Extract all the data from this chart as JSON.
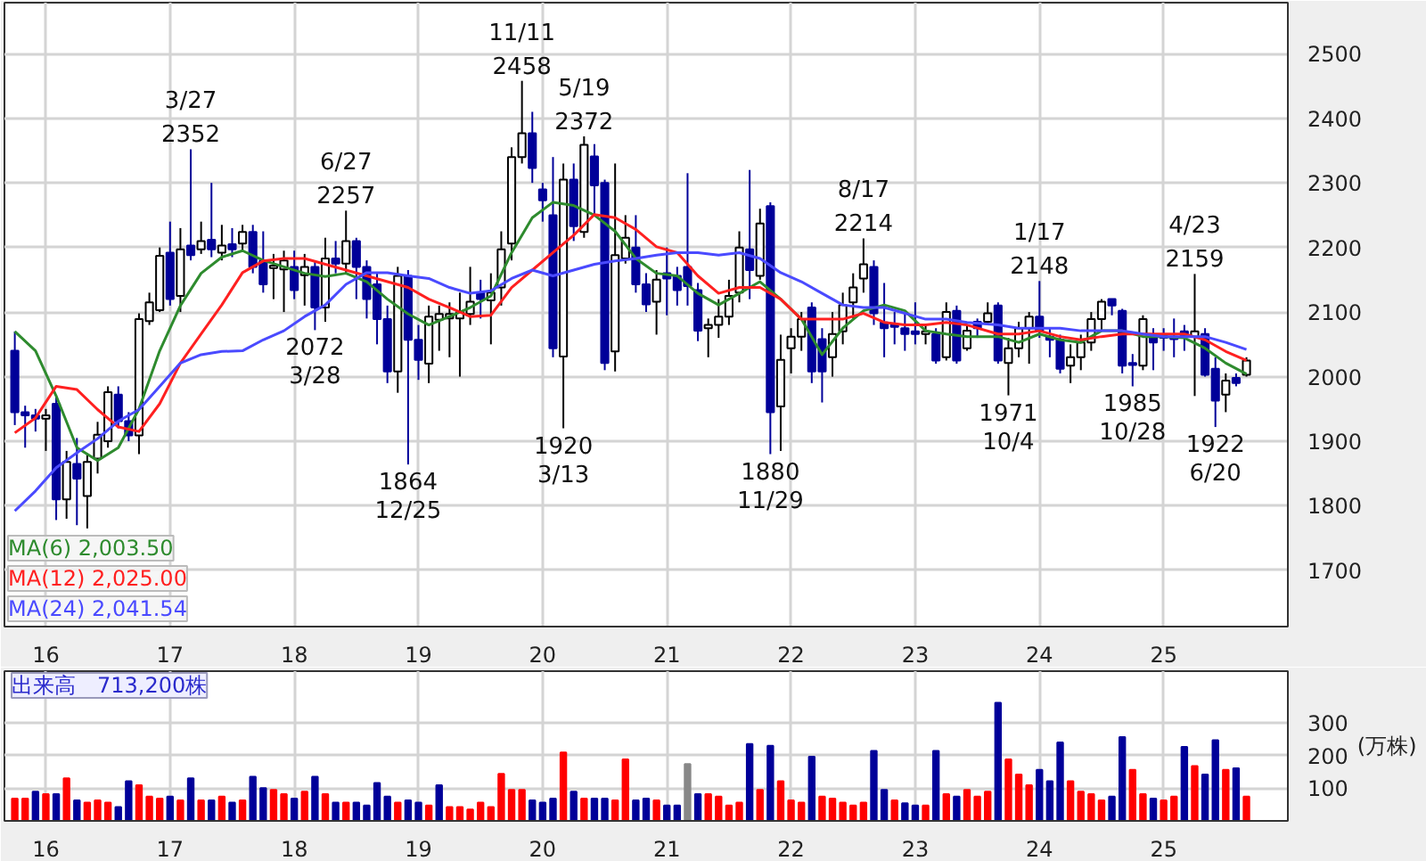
{
  "chart_data": [
    {
      "type": "candlestick",
      "x": [
        "2015-10",
        "2015-11",
        "2015-12",
        "2016-01",
        "2016-02",
        "2016-03",
        "2016-04",
        "2016-05",
        "2016-06",
        "2016-07",
        "2016-08",
        "2016-09",
        "2016-10",
        "2016-11",
        "2016-12",
        "2017-01",
        "2017-02",
        "2017-03",
        "2017-04",
        "2017-05",
        "2017-06",
        "2017-07",
        "2017-08",
        "2017-09",
        "2017-10",
        "2017-11",
        "2017-12",
        "2018-01",
        "2018-02",
        "2018-03",
        "2018-04",
        "2018-05",
        "2018-06",
        "2018-07",
        "2018-08",
        "2018-09",
        "2018-10",
        "2018-11",
        "2018-12",
        "2019-01",
        "2019-02",
        "2019-03",
        "2019-04",
        "2019-05",
        "2019-06",
        "2019-07",
        "2019-08",
        "2019-09",
        "2019-10",
        "2019-11",
        "2019-12",
        "2020-01",
        "2020-02",
        "2020-03",
        "2020-04",
        "2020-05",
        "2020-06",
        "2020-07",
        "2020-08",
        "2020-09",
        "2020-10",
        "2020-11",
        "2020-12",
        "2021-01",
        "2021-02",
        "2021-03",
        "2021-04",
        "2021-05",
        "2021-06",
        "2021-07",
        "2021-08",
        "2021-09",
        "2021-10",
        "2021-11",
        "2021-12",
        "2022-01",
        "2022-02",
        "2022-03",
        "2022-04",
        "2022-05",
        "2022-06",
        "2022-07",
        "2022-08",
        "2022-09",
        "2022-10",
        "2022-11",
        "2022-12",
        "2023-01",
        "2023-02",
        "2023-03",
        "2023-04",
        "2023-05",
        "2023-06",
        "2023-07",
        "2023-08",
        "2023-09",
        "2023-10",
        "2023-11",
        "2023-12",
        "2024-01",
        "2024-02",
        "2024-03",
        "2024-04",
        "2024-05",
        "2024-06",
        "2024-07",
        "2024-08",
        "2024-09",
        "2024-10",
        "2024-11",
        "2024-12",
        "2025-01",
        "2025-02",
        "2025-03",
        "2025-04",
        "2025-05",
        "2025-06",
        "2025-07",
        "2025-08",
        "2025-09"
      ],
      "ohlc": [
        [
          2040,
          2070,
          1925,
          1945
        ],
        [
          1945,
          1955,
          1890,
          1940
        ],
        [
          1940,
          1950,
          1915,
          1935
        ],
        [
          1935,
          1950,
          1885,
          1940
        ],
        [
          1958,
          1970,
          1778,
          1810
        ],
        [
          1810,
          1885,
          1780,
          1868
        ],
        [
          1865,
          1905,
          1770,
          1842
        ],
        [
          1815,
          1880,
          1765,
          1868
        ],
        [
          1873,
          1930,
          1850,
          1910
        ],
        [
          1900,
          1985,
          1890,
          1976
        ],
        [
          1972,
          1985,
          1920,
          1931
        ],
        [
          1931,
          1945,
          1900,
          1909
        ],
        [
          1909,
          2098,
          1880,
          2089
        ],
        [
          2086,
          2130,
          2080,
          2115
        ],
        [
          2103,
          2200,
          2100,
          2187
        ],
        [
          2192,
          2240,
          2110,
          2120
        ],
        [
          2125,
          2230,
          2100,
          2197
        ],
        [
          2203,
          2352,
          2180,
          2188
        ],
        [
          2197,
          2240,
          2190,
          2210
        ],
        [
          2212,
          2300,
          2185,
          2197
        ],
        [
          2192,
          2235,
          2180,
          2203
        ],
        [
          2205,
          2230,
          2185,
          2197
        ],
        [
          2206,
          2235,
          2195,
          2224
        ],
        [
          2224,
          2235,
          2160,
          2170
        ],
        [
          2179,
          2225,
          2130,
          2143
        ],
        [
          2168,
          2190,
          2120,
          2172
        ],
        [
          2166,
          2195,
          2100,
          2180
        ],
        [
          2170,
          2195,
          2120,
          2134
        ],
        [
          2157,
          2190,
          2110,
          2170
        ],
        [
          2170,
          2180,
          2072,
          2107
        ],
        [
          2107,
          2215,
          2085,
          2183
        ],
        [
          2183,
          2210,
          2160,
          2175
        ],
        [
          2175,
          2257,
          2160,
          2210
        ],
        [
          2210,
          2215,
          2120,
          2170
        ],
        [
          2170,
          2180,
          2090,
          2120
        ],
        [
          2143,
          2160,
          2050,
          2089
        ],
        [
          2089,
          2110,
          1990,
          2008
        ],
        [
          2008,
          2170,
          1975,
          2156
        ],
        [
          2156,
          2165,
          1864,
          2057
        ],
        [
          2057,
          2080,
          1995,
          2026
        ],
        [
          2020,
          2110,
          1990,
          2093
        ],
        [
          2088,
          2110,
          2040,
          2097
        ],
        [
          2090,
          2115,
          2030,
          2097
        ],
        [
          2090,
          2130,
          2000,
          2100
        ],
        [
          2097,
          2170,
          2080,
          2116
        ],
        [
          2130,
          2150,
          2090,
          2120
        ],
        [
          2118,
          2160,
          2050,
          2130
        ],
        [
          2138,
          2225,
          2110,
          2197
        ],
        [
          2206,
          2355,
          2180,
          2340
        ],
        [
          2340,
          2458,
          2330,
          2377
        ],
        [
          2377,
          2410,
          2300,
          2323
        ],
        [
          2290,
          2300,
          2240,
          2273
        ],
        [
          2250,
          2340,
          2030,
          2044
        ],
        [
          2031,
          2330,
          1920,
          2305
        ],
        [
          2305,
          2330,
          2210,
          2233
        ],
        [
          2224,
          2372,
          2215,
          2359
        ],
        [
          2341,
          2360,
          2250,
          2296
        ],
        [
          2300,
          2305,
          2010,
          2021
        ],
        [
          2039,
          2330,
          2008,
          2188
        ],
        [
          2183,
          2250,
          2175,
          2215
        ],
        [
          2200,
          2250,
          2130,
          2143
        ],
        [
          2143,
          2160,
          2100,
          2112
        ],
        [
          2116,
          2165,
          2065,
          2150
        ],
        [
          2160,
          2200,
          2095,
          2152
        ],
        [
          2156,
          2170,
          2110,
          2134
        ],
        [
          2170,
          2315,
          2110,
          2140
        ],
        [
          2134,
          2145,
          2055,
          2071
        ],
        [
          2075,
          2090,
          2030,
          2080
        ],
        [
          2080,
          2120,
          2060,
          2093
        ],
        [
          2093,
          2150,
          2080,
          2125
        ],
        [
          2130,
          2225,
          2115,
          2200
        ],
        [
          2197,
          2320,
          2120,
          2165
        ],
        [
          2156,
          2260,
          2150,
          2237
        ],
        [
          2264,
          2270,
          1880,
          1945
        ],
        [
          1954,
          2065,
          1885,
          2026
        ],
        [
          2044,
          2075,
          2005,
          2062
        ],
        [
          2062,
          2100,
          2040,
          2089
        ],
        [
          2107,
          2115,
          1990,
          2008
        ],
        [
          2058,
          2075,
          1960,
          2008
        ],
        [
          2030,
          2100,
          2000,
          2066
        ],
        [
          2070,
          2130,
          2050,
          2111
        ],
        [
          2115,
          2160,
          2090,
          2138
        ],
        [
          2152,
          2214,
          2130,
          2174
        ],
        [
          2170,
          2180,
          2080,
          2098
        ],
        [
          2084,
          2145,
          2030,
          2075
        ],
        [
          2080,
          2100,
          2050,
          2077
        ],
        [
          2075,
          2100,
          2040,
          2066
        ],
        [
          2070,
          2115,
          2050,
          2066
        ],
        [
          2066,
          2080,
          2050,
          2070
        ],
        [
          2066,
          2075,
          2020,
          2025
        ],
        [
          2030,
          2115,
          2025,
          2100
        ],
        [
          2102,
          2110,
          2020,
          2025
        ],
        [
          2044,
          2080,
          2040,
          2071
        ],
        [
          2085,
          2090,
          2060,
          2075
        ],
        [
          2085,
          2115,
          2080,
          2098
        ],
        [
          2110,
          2115,
          2020,
          2025
        ],
        [
          2021,
          2060,
          1971,
          2044
        ],
        [
          2044,
          2085,
          2030,
          2075
        ],
        [
          2075,
          2100,
          2020,
          2093
        ],
        [
          2093,
          2148,
          2060,
          2071
        ],
        [
          2062,
          2075,
          2030,
          2057
        ],
        [
          2057,
          2065,
          2005,
          2012
        ],
        [
          2017,
          2050,
          1990,
          2030
        ],
        [
          2030,
          2065,
          2010,
          2053
        ],
        [
          2053,
          2100,
          2040,
          2089
        ],
        [
          2089,
          2120,
          2070,
          2116
        ],
        [
          2120,
          2120,
          2095,
          2110
        ],
        [
          2102,
          2105,
          2005,
          2017
        ],
        [
          2021,
          2035,
          1985,
          2018
        ],
        [
          2017,
          2095,
          2010,
          2089
        ],
        [
          2062,
          2075,
          2010,
          2053
        ],
        [
          2063,
          2075,
          2040,
          2060
        ],
        [
          2062,
          2090,
          2030,
          2058
        ],
        [
          2070,
          2080,
          2040,
          2062
        ],
        [
          2062,
          2159,
          1970,
          2070
        ],
        [
          2066,
          2075,
          2000,
          2003
        ],
        [
          2012,
          2030,
          1922,
          1963
        ],
        [
          1972,
          2005,
          1945,
          1994
        ],
        [
          1998,
          2005,
          1985,
          1990
        ],
        [
          2003,
          2030,
          2000,
          2025
        ]
      ],
      "series": [
        {
          "name": "MA(6) 2,003.50",
          "type": "line",
          "color": "#2e8b2e",
          "x": [
            "2015-10",
            "2015-12",
            "2016-02",
            "2016-04",
            "2016-06",
            "2016-08",
            "2016-10",
            "2016-12",
            "2017-02",
            "2017-04",
            "2017-06",
            "2017-08",
            "2017-10",
            "2017-12",
            "2018-02",
            "2018-04",
            "2018-06",
            "2018-08",
            "2018-10",
            "2018-12",
            "2019-02",
            "2019-04",
            "2019-06",
            "2019-08",
            "2019-10",
            "2019-12",
            "2020-02",
            "2020-04",
            "2020-06",
            "2020-08",
            "2020-10",
            "2020-12",
            "2021-02",
            "2021-04",
            "2021-06",
            "2021-08",
            "2021-10",
            "2021-12",
            "2022-02",
            "2022-04",
            "2022-06",
            "2022-08",
            "2022-10",
            "2022-12",
            "2023-02",
            "2023-04",
            "2023-06",
            "2023-09",
            "2023-11",
            "2024-01",
            "2024-03",
            "2024-05",
            "2024-07",
            "2024-09",
            "2024-11",
            "2025-01",
            "2025-03",
            "2025-05",
            "2025-07",
            "2025-09"
          ],
          "values": [
            2070,
            2040,
            1970,
            1890,
            1870,
            1890,
            1950,
            2040,
            2110,
            2160,
            2185,
            2195,
            2180,
            2170,
            2160,
            2155,
            2160,
            2147,
            2120,
            2097,
            2080,
            2093,
            2107,
            2125,
            2192,
            2246,
            2270,
            2265,
            2250,
            2225,
            2183,
            2160,
            2156,
            2129,
            2111,
            2129,
            2147,
            2120,
            2089,
            2034,
            2075,
            2102,
            2111,
            2102,
            2071,
            2066,
            2062,
            2062,
            2053,
            2066,
            2057,
            2053,
            2071,
            2071,
            2062,
            2062,
            2060,
            2044,
            2021,
            2004
          ]
        },
        {
          "name": "MA(12) 2,025.00",
          "type": "line",
          "color": "#ff2020",
          "x": [
            "2015-10",
            "2015-12",
            "2016-02",
            "2016-04",
            "2016-06",
            "2016-08",
            "2016-10",
            "2016-12",
            "2017-02",
            "2017-04",
            "2017-06",
            "2017-08",
            "2017-10",
            "2017-12",
            "2018-02",
            "2018-04",
            "2018-06",
            "2018-08",
            "2018-10",
            "2018-12",
            "2019-02",
            "2019-04",
            "2019-06",
            "2019-08",
            "2019-10",
            "2019-12",
            "2020-02",
            "2020-04",
            "2020-06",
            "2020-08",
            "2020-10",
            "2020-12",
            "2021-02",
            "2021-04",
            "2021-06",
            "2021-08",
            "2021-10",
            "2021-12",
            "2022-02",
            "2022-04",
            "2022-06",
            "2022-08",
            "2022-10",
            "2022-12",
            "2023-02",
            "2023-04",
            "2023-06",
            "2023-09",
            "2023-11",
            "2024-01",
            "2024-03",
            "2024-05",
            "2024-07",
            "2024-09",
            "2024-11",
            "2025-01",
            "2025-03",
            "2025-05",
            "2025-07",
            "2025-09"
          ],
          "values": [
            1913,
            1936,
            1985,
            1980,
            1949,
            1922,
            1915,
            1958,
            2021,
            2066,
            2111,
            2161,
            2179,
            2183,
            2183,
            2174,
            2165,
            2156,
            2147,
            2138,
            2120,
            2107,
            2093,
            2095,
            2138,
            2165,
            2192,
            2219,
            2251,
            2246,
            2228,
            2201,
            2192,
            2156,
            2129,
            2138,
            2138,
            2120,
            2089,
            2089,
            2089,
            2098,
            2084,
            2080,
            2080,
            2084,
            2080,
            2066,
            2066,
            2071,
            2062,
            2057,
            2062,
            2066,
            2066,
            2066,
            2066,
            2057,
            2039,
            2025
          ]
        },
        {
          "name": "MA(24) 2,041.54",
          "type": "line",
          "color": "#4a4aff",
          "x": [
            "2015-10",
            "2015-12",
            "2016-02",
            "2016-04",
            "2016-06",
            "2016-08",
            "2016-10",
            "2016-12",
            "2017-02",
            "2017-04",
            "2017-06",
            "2017-08",
            "2017-10",
            "2017-12",
            "2018-02",
            "2018-04",
            "2018-06",
            "2018-08",
            "2018-10",
            "2018-12",
            "2019-02",
            "2019-04",
            "2019-06",
            "2019-08",
            "2019-10",
            "2019-12",
            "2020-02",
            "2020-04",
            "2020-06",
            "2020-08",
            "2020-10",
            "2020-12",
            "2021-02",
            "2021-04",
            "2021-06",
            "2021-08",
            "2021-10",
            "2021-12",
            "2022-02",
            "2022-04",
            "2022-06",
            "2022-08",
            "2022-10",
            "2022-12",
            "2023-02",
            "2023-04",
            "2023-06",
            "2023-09",
            "2023-11",
            "2024-01",
            "2024-03",
            "2024-05",
            "2024-07",
            "2024-09",
            "2024-11",
            "2025-01",
            "2025-03",
            "2025-05",
            "2025-07",
            "2025-09"
          ],
          "values": [
            1792,
            1823,
            1859,
            1882,
            1904,
            1931,
            1949,
            1985,
            2021,
            2034,
            2039,
            2040,
            2057,
            2071,
            2093,
            2111,
            2143,
            2161,
            2161,
            2156,
            2152,
            2138,
            2129,
            2133,
            2152,
            2165,
            2156,
            2165,
            2174,
            2179,
            2183,
            2188,
            2192,
            2192,
            2188,
            2192,
            2183,
            2161,
            2147,
            2129,
            2111,
            2107,
            2107,
            2098,
            2089,
            2089,
            2084,
            2080,
            2075,
            2075,
            2075,
            2071,
            2071,
            2071,
            2066,
            2062,
            2062,
            2062,
            2053,
            2042
          ]
        }
      ],
      "annotations": [
        {
          "text": "3/27\n2352",
          "x": "2017-03",
          "y": 2352
        },
        {
          "text": "6/27\n2257",
          "x": "2018-06",
          "y": 2257
        },
        {
          "text": "2072\n3/28",
          "x": "2018-03",
          "y": 2072
        },
        {
          "text": "1864\n12/25",
          "x": "2018-12",
          "y": 1864
        },
        {
          "text": "11/11\n2458",
          "x": "2019-11",
          "y": 2458
        },
        {
          "text": "5/19\n2372",
          "x": "2020-05",
          "y": 2372
        },
        {
          "text": "1920\n3/13",
          "x": "2020-03",
          "y": 1920
        },
        {
          "text": "1880\n11/29",
          "x": "2021-11",
          "y": 1880
        },
        {
          "text": "8/17\n2214",
          "x": "2022-08",
          "y": 2214
        },
        {
          "text": "1971\n10/4",
          "x": "2023-10",
          "y": 1971
        },
        {
          "text": "1/17\n2148",
          "x": "2024-01",
          "y": 2148
        },
        {
          "text": "1985\n10/28",
          "x": "2024-10",
          "y": 1985
        },
        {
          "text": "4/23\n2159",
          "x": "2025-04",
          "y": 2159
        },
        {
          "text": "1922\n6/20",
          "x": "2025-06",
          "y": 1922
        }
      ],
      "xlim": [
        "2015-09",
        "2026-01"
      ],
      "xticks": [
        {
          "value": "2016-01",
          "label": "16"
        },
        {
          "value": "2017-01",
          "label": "17"
        },
        {
          "value": "2018-01",
          "label": "18"
        },
        {
          "value": "2019-01",
          "label": "19"
        },
        {
          "value": "2020-01",
          "label": "20"
        },
        {
          "value": "2021-01",
          "label": "21"
        },
        {
          "value": "2022-01",
          "label": "22"
        },
        {
          "value": "2023-01",
          "label": "23"
        },
        {
          "value": "2024-01",
          "label": "24"
        },
        {
          "value": "2025-01",
          "label": "25"
        }
      ],
      "ylim": [
        1613,
        2579
      ],
      "yticks": [
        1700,
        1800,
        1900,
        2000,
        2100,
        2200,
        2300,
        2400,
        2500
      ],
      "grid": true,
      "legend": "bottom left"
    },
    {
      "type": "bar",
      "title": "出来高　713,200株",
      "ylabel": "(万株)",
      "x": [
        "2015-10",
        "2015-11",
        "2015-12",
        "2016-01",
        "2016-02",
        "2016-03",
        "2016-04",
        "2016-05",
        "2016-06",
        "2016-07",
        "2016-08",
        "2016-09",
        "2016-10",
        "2016-11",
        "2016-12",
        "2017-01",
        "2017-02",
        "2017-03",
        "2017-04",
        "2017-05",
        "2017-06",
        "2017-07",
        "2017-08",
        "2017-09",
        "2017-10",
        "2017-11",
        "2017-12",
        "2018-01",
        "2018-02",
        "2018-03",
        "2018-04",
        "2018-05",
        "2018-06",
        "2018-07",
        "2018-08",
        "2018-09",
        "2018-10",
        "2018-11",
        "2018-12",
        "2019-01",
        "2019-02",
        "2019-03",
        "2019-04",
        "2019-05",
        "2019-06",
        "2019-07",
        "2019-08",
        "2019-09",
        "2019-10",
        "2019-11",
        "2019-12",
        "2020-01",
        "2020-02",
        "2020-03",
        "2020-04",
        "2020-05",
        "2020-06",
        "2020-07",
        "2020-08",
        "2020-09",
        "2020-10",
        "2020-11",
        "2020-12",
        "2021-01",
        "2021-02",
        "2021-03",
        "2021-04",
        "2021-05",
        "2021-06",
        "2021-07",
        "2021-08",
        "2021-09",
        "2021-10",
        "2021-11",
        "2021-12",
        "2022-01",
        "2022-02",
        "2022-03",
        "2022-04",
        "2022-05",
        "2022-06",
        "2022-07",
        "2022-08",
        "2022-09",
        "2022-10",
        "2022-11",
        "2022-12",
        "2023-01",
        "2023-02",
        "2023-03",
        "2023-04",
        "2023-05",
        "2023-06",
        "2023-07",
        "2023-08",
        "2023-09",
        "2023-10",
        "2023-11",
        "2023-12",
        "2024-01",
        "2024-02",
        "2024-03",
        "2024-04",
        "2024-05",
        "2024-06",
        "2024-07",
        "2024-08",
        "2024-09",
        "2024-10",
        "2024-11",
        "2024-12",
        "2025-01",
        "2025-02",
        "2025-03",
        "2025-04",
        "2025-05",
        "2025-06",
        "2025-07",
        "2025-08",
        "2025-09"
      ],
      "values": [
        68,
        68,
        89,
        82,
        82,
        130,
        63,
        56,
        63,
        56,
        42,
        121,
        109,
        74,
        68,
        74,
        63,
        130,
        63,
        63,
        74,
        56,
        63,
        135,
        100,
        95,
        82,
        68,
        89,
        135,
        82,
        56,
        56,
        56,
        47,
        116,
        74,
        56,
        63,
        56,
        47,
        109,
        42,
        42,
        35,
        56,
        42,
        144,
        95,
        95,
        63,
        56,
        68,
        209,
        89,
        68,
        68,
        68,
        63,
        188,
        63,
        68,
        63,
        47,
        47,
        174,
        82,
        82,
        74,
        47,
        56,
        235,
        95,
        230,
        121,
        63,
        56,
        196,
        74,
        68,
        56,
        47,
        56,
        214,
        95,
        63,
        54,
        47,
        47,
        214,
        82,
        74,
        95,
        74,
        89,
        361,
        188,
        142,
        109,
        156,
        121,
        240,
        121,
        89,
        82,
        63,
        74,
        256,
        156,
        82,
        68,
        63,
        74,
        226,
        168,
        142,
        247,
        156,
        161,
        74
      ],
      "colors": [
        "#ff0000",
        "#ff0000",
        "#000099",
        "#ff0000",
        "#000099",
        "#ff0000",
        "#000099",
        "#ff0000",
        "#ff0000",
        "#ff0000",
        "#000099",
        "#000099",
        "#ff0000",
        "#ff0000",
        "#ff0000",
        "#000099",
        "#ff0000",
        "#000099",
        "#ff0000",
        "#000099",
        "#ff0000",
        "#000099",
        "#ff0000",
        "#000099",
        "#000099",
        "#ff0000",
        "#ff0000",
        "#000099",
        "#ff0000",
        "#000099",
        "#ff0000",
        "#000099",
        "#ff0000",
        "#000099",
        "#000099",
        "#000099",
        "#000099",
        "#ff0000",
        "#000099",
        "#000099",
        "#ff0000",
        "#000099",
        "#ff0000",
        "#ff0000",
        "#ff0000",
        "#ff0000",
        "#ff0000",
        "#ff0000",
        "#ff0000",
        "#ff0000",
        "#000099",
        "#000099",
        "#000099",
        "#ff0000",
        "#000099",
        "#ff0000",
        "#000099",
        "#000099",
        "#ff0000",
        "#ff0000",
        "#000099",
        "#000099",
        "#ff0000",
        "#000099",
        "#000099",
        "#888888",
        "#000099",
        "#ff0000",
        "#ff0000",
        "#ff0000",
        "#ff0000",
        "#000099",
        "#ff0000",
        "#000099",
        "#ff0000",
        "#ff0000",
        "#ff0000",
        "#000099",
        "#ff0000",
        "#ff0000",
        "#ff0000",
        "#ff0000",
        "#ff0000",
        "#000099",
        "#000099",
        "#ff0000",
        "#000099",
        "#000099",
        "#ff0000",
        "#000099",
        "#ff0000",
        "#000099",
        "#ff0000",
        "#ff0000",
        "#ff0000",
        "#000099",
        "#ff0000",
        "#ff0000",
        "#ff0000",
        "#000099",
        "#000099",
        "#000099",
        "#ff0000",
        "#ff0000",
        "#ff0000",
        "#ff0000",
        "#000099",
        "#000099",
        "#ff0000",
        "#ff0000",
        "#000099",
        "#ff0000",
        "#ff0000",
        "#000099",
        "#ff0000",
        "#000099",
        "#000099",
        "#ff0000",
        "#000099",
        "#ff0000"
      ],
      "xlim": [
        "2015-09",
        "2026-01"
      ],
      "xticks": [
        {
          "value": "2016-01",
          "label": "16"
        },
        {
          "value": "2017-01",
          "label": "17"
        },
        {
          "value": "2018-01",
          "label": "18"
        },
        {
          "value": "2019-01",
          "label": "19"
        },
        {
          "value": "2020-01",
          "label": "20"
        },
        {
          "value": "2021-01",
          "label": "21"
        },
        {
          "value": "2022-01",
          "label": "22"
        },
        {
          "value": "2023-01",
          "label": "23"
        },
        {
          "value": "2024-01",
          "label": "24"
        },
        {
          "value": "2025-01",
          "label": "25"
        }
      ],
      "ylim": [
        0,
        458
      ],
      "yticks": [
        100,
        200,
        300
      ],
      "grid": true
    }
  ]
}
